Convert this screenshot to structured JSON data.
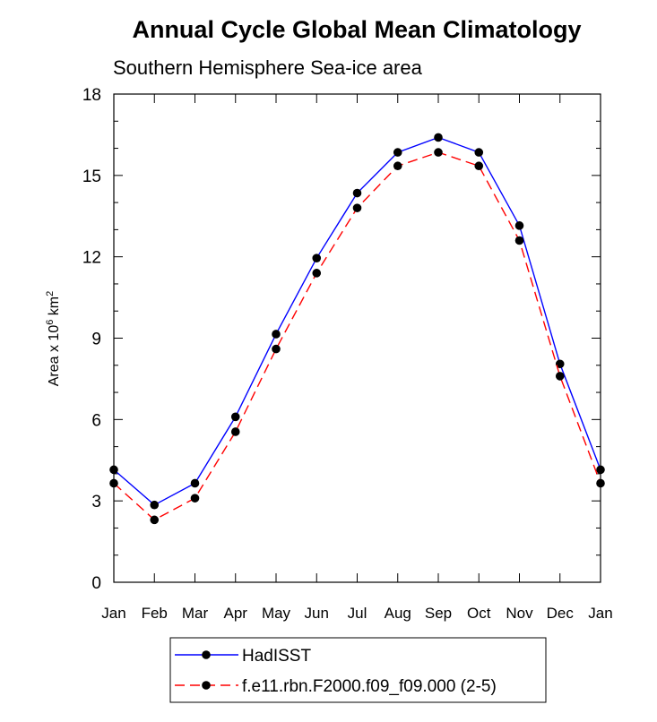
{
  "chart_data": {
    "type": "line",
    "title": "Annual Cycle Global Mean Climatology",
    "subtitle": "Southern Hemisphere Sea-ice area",
    "ylabel": {
      "prefix": "Area x 10",
      "exp1": "6",
      "mid": " km",
      "exp2": "2"
    },
    "xlabel": "",
    "categories": [
      "Jan",
      "Feb",
      "Mar",
      "Apr",
      "May",
      "Jun",
      "Jul",
      "Aug",
      "Sep",
      "Oct",
      "Nov",
      "Dec",
      "Jan"
    ],
    "ylim": [
      0,
      18
    ],
    "yticks": [
      0,
      3,
      6,
      9,
      12,
      15,
      18
    ],
    "ytick_labels": [
      "0",
      "3",
      "6",
      "9",
      "12",
      "15",
      "18"
    ],
    "series": [
      {
        "name": "HadISST",
        "color": "#0000ff",
        "dash": "solid",
        "values": [
          4.15,
          2.85,
          3.65,
          6.1,
          9.15,
          11.95,
          14.35,
          15.85,
          16.4,
          15.85,
          13.15,
          8.05,
          4.15
        ]
      },
      {
        "name": "f.e11.rbn.F2000.f09_f09.000 (2-5)",
        "color": "#ff0000",
        "dash": "dashed",
        "values": [
          3.65,
          2.3,
          3.1,
          5.55,
          8.6,
          11.4,
          13.8,
          15.35,
          15.85,
          15.35,
          12.6,
          7.6,
          3.65
        ]
      }
    ],
    "legend_position": "bottom-center",
    "grid": false
  }
}
